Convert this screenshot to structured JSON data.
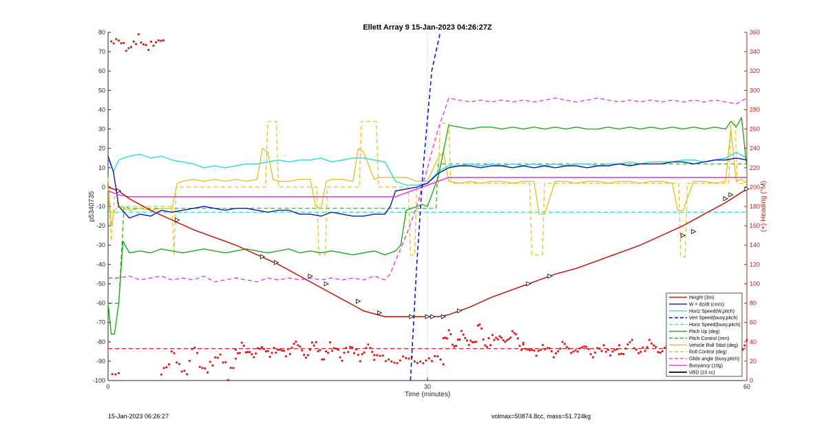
{
  "footer": {
    "left": "15-Jan-2023 06:26:27",
    "right": "volmax=50874.8cc, mass=51.724kg"
  },
  "chart_data": {
    "type": "line",
    "title": "Ellett Array 9 15-Jan-2023 04:26:27Z",
    "xlabel": "Time (minutes)",
    "ylabel": "p5340735",
    "ylabel_right": "(+) Heading (°M)",
    "xlim": [
      0,
      60
    ],
    "ylim": [
      -100,
      80
    ],
    "ylim_right": [
      0,
      360
    ],
    "xticks": [
      0,
      30,
      60
    ],
    "yticks": [
      -100,
      -90,
      -80,
      -70,
      -60,
      -50,
      -40,
      -30,
      -20,
      -10,
      0,
      10,
      20,
      30,
      40,
      50,
      60,
      70,
      80
    ],
    "yticks_right": [
      0,
      20,
      40,
      60,
      80,
      100,
      120,
      140,
      160,
      180,
      200,
      220,
      240,
      260,
      280,
      300,
      320,
      340,
      360
    ],
    "grid": {
      "x": true,
      "y": false
    },
    "legend_position": "bottom-right",
    "colors": {
      "height": "#c0201a",
      "w": "#0a1aa8",
      "horiz_speed": "#30d8e0",
      "vert_speed": "#0a1ad0",
      "pitch": "#22a822",
      "roll": "#e0c020",
      "glide": "#e040e0",
      "vbd": "#000000",
      "heading": "#d42020"
    },
    "series": [
      {
        "name": "Height (3m)",
        "key": "height",
        "style": "solid",
        "width": 1.6,
        "x": [
          0,
          0.5,
          1,
          2,
          4,
          6,
          8,
          10,
          12,
          14,
          16,
          18,
          20,
          22,
          24,
          26,
          27,
          28,
          30,
          31,
          32,
          33,
          34,
          36,
          38,
          40,
          42,
          44,
          46,
          48,
          50,
          52,
          54,
          56,
          58,
          60
        ],
        "y": [
          0,
          -1,
          -2,
          -6,
          -12,
          -17,
          -22,
          -26,
          -30,
          -35,
          -40,
          -46,
          -52,
          -58,
          -64,
          -67,
          -67,
          -67,
          -67,
          -67,
          -66,
          -64,
          -62,
          -57,
          -53,
          -49,
          -45,
          -42,
          -38,
          -34,
          -30,
          -25,
          -20,
          -14,
          -8,
          -1
        ],
        "markers": [
          [
            1,
            -2
          ],
          [
            6.5,
            -17
          ],
          [
            14.5,
            -36
          ],
          [
            15.8,
            -39
          ],
          [
            19,
            -46
          ],
          [
            20.5,
            -50
          ],
          [
            23.5,
            -59
          ],
          [
            25.5,
            -65
          ],
          [
            28.5,
            -67
          ],
          [
            30,
            -67
          ],
          [
            30.5,
            -67
          ],
          [
            31.5,
            -67
          ],
          [
            33,
            -64
          ],
          [
            39.5,
            -50
          ],
          [
            41.5,
            -46
          ],
          [
            54,
            -25
          ],
          [
            55,
            -23
          ],
          [
            58,
            -6
          ],
          [
            58.5,
            -4
          ],
          [
            60,
            -1
          ]
        ]
      },
      {
        "name": "W = dz/dt (cm/s)",
        "key": "w",
        "style": "solid",
        "width": 1.4,
        "x": [
          0,
          0.5,
          1,
          2,
          3,
          4,
          5,
          6,
          7,
          8,
          9,
          10,
          11,
          12,
          13,
          14,
          15,
          16,
          17,
          18,
          19,
          20,
          21,
          22,
          23,
          24,
          25,
          26,
          26.5,
          27,
          28,
          29,
          30,
          31,
          32,
          33,
          34,
          35,
          36,
          37,
          38,
          39,
          40,
          41,
          42,
          43,
          44,
          45,
          46,
          47,
          48,
          49,
          50,
          51,
          52,
          53,
          54,
          55,
          56,
          57,
          58,
          59,
          60
        ],
        "y": [
          16,
          8,
          -10,
          -16,
          -14,
          -15,
          -12,
          -13,
          -12,
          -11,
          -10,
          -11,
          -12,
          -11,
          -11,
          -12,
          -13,
          -12,
          -12,
          -14,
          -14,
          -15,
          -13,
          -14,
          -15,
          -15,
          -14,
          -14,
          -10,
          -2,
          -1,
          0,
          2,
          7,
          10,
          11,
          11,
          10,
          11,
          11,
          10,
          11,
          10,
          11,
          10,
          11,
          11,
          10,
          11,
          11,
          12,
          11,
          12,
          12,
          12,
          13,
          13,
          12,
          13,
          14,
          14,
          15,
          14
        ]
      },
      {
        "name": "Horiz Speed(W,pitch)",
        "key": "horiz_speed",
        "style": "solid",
        "width": 1.4,
        "x": [
          0,
          0.5,
          1,
          2,
          3,
          4,
          5,
          6,
          7,
          8,
          9,
          10,
          11,
          12,
          13,
          14,
          15,
          16,
          17,
          18,
          19,
          20,
          21,
          22,
          23,
          24,
          25,
          26,
          27,
          28,
          29,
          30,
          31,
          32,
          33,
          34,
          35,
          36,
          37,
          38,
          39,
          40,
          41,
          42,
          43,
          44,
          45,
          46,
          47,
          48,
          49,
          50,
          51,
          52,
          53,
          54,
          55,
          56,
          57,
          58,
          59,
          60
        ],
        "y": [
          15,
          8,
          14,
          16,
          17,
          15,
          16,
          14,
          13,
          12,
          10,
          11,
          10,
          11,
          12,
          12,
          13,
          14,
          13,
          14,
          14,
          15,
          13,
          14,
          15,
          15,
          14,
          13,
          3,
          1,
          1,
          2,
          8,
          11,
          11,
          12,
          11,
          12,
          11,
          12,
          11,
          12,
          11,
          12,
          11,
          12,
          12,
          11,
          12,
          12,
          13,
          12,
          13,
          13,
          13,
          14,
          14,
          13,
          14,
          15,
          18,
          15
        ]
      },
      {
        "name": "Vert Speed(buoy,pitch)",
        "key": "vert_speed",
        "style": "dashed",
        "width": 1.6,
        "x": [
          28.4,
          29,
          29.6,
          30.4,
          31.2
        ],
        "y": [
          -100,
          -40,
          10,
          60,
          80
        ]
      },
      {
        "name": "Horiz Speed(buoy,pitch)",
        "key": "horiz_speed",
        "style": "dashed",
        "width": 1.2,
        "x": [
          0,
          60
        ],
        "y": [
          -13,
          -13
        ]
      },
      {
        "name": "Pitch Up (deg)",
        "key": "pitch",
        "style": "solid",
        "width": 1.4,
        "x": [
          0,
          0.3,
          0.6,
          1,
          1.4,
          2,
          3,
          4,
          5,
          6,
          7,
          8,
          9,
          10,
          11,
          12,
          13,
          14,
          15,
          16,
          17,
          18,
          19,
          20,
          21,
          22,
          23,
          24,
          25,
          26,
          27,
          27.5,
          28,
          28.5,
          29,
          29.5,
          30,
          31,
          32,
          33,
          34,
          35,
          36,
          37,
          38,
          39,
          40,
          41,
          42,
          43,
          44,
          45,
          46,
          47,
          48,
          49,
          50,
          51,
          52,
          53,
          54,
          55,
          56,
          57,
          58,
          58.5,
          59,
          59.5,
          60
        ],
        "y": [
          -60,
          -76,
          -76,
          -60,
          -28,
          -34,
          -33,
          -34,
          -32,
          -33,
          -34,
          -33,
          -32,
          -33,
          -34,
          -33,
          -32,
          -33,
          -34,
          -33,
          -32,
          -34,
          -33,
          -34,
          -33,
          -34,
          -35,
          -34,
          -33,
          -35,
          -33,
          -30,
          -12,
          -11,
          -10,
          -9,
          -10,
          5,
          32,
          31,
          30,
          31,
          31,
          30,
          31,
          30,
          31,
          30,
          31,
          30,
          31,
          30,
          30,
          31,
          30,
          31,
          30,
          31,
          30,
          31,
          30,
          31,
          30,
          31,
          30,
          34,
          31,
          36,
          10
        ]
      },
      {
        "name": "Pitch Control (mm)",
        "key": "pitch",
        "style": "dashed",
        "width": 1.2,
        "x": [
          0,
          1,
          1.5,
          2,
          10,
          20,
          28,
          29,
          30,
          30.8,
          31,
          60
        ],
        "y": [
          -60,
          -60,
          -10,
          -11,
          -11,
          -11,
          -11,
          -11,
          -11,
          -11,
          12,
          12
        ]
      },
      {
        "name": "Vehicle Roll Stbd (deg)",
        "key": "roll",
        "style": "solid",
        "width": 1.3,
        "x": [
          0,
          0.3,
          0.6,
          1,
          2,
          3,
          4,
          5,
          6,
          6.5,
          7,
          8,
          9,
          10,
          11,
          12,
          13,
          14,
          14.5,
          15,
          15.5,
          16,
          17,
          18,
          19,
          19.5,
          20,
          20.5,
          21,
          22,
          23,
          23.5,
          24,
          25,
          25.5,
          26,
          27,
          28,
          29,
          30,
          31,
          31.5,
          32,
          33,
          34,
          35,
          36,
          37,
          38,
          39,
          40,
          40.5,
          41,
          42,
          43,
          44,
          45,
          46,
          47,
          48,
          49,
          50,
          51,
          52,
          53,
          53.5,
          54,
          55,
          56,
          57,
          58,
          58.5,
          59,
          59.5,
          60
        ],
        "y": [
          5,
          -20,
          -12,
          -10,
          -12,
          -11,
          -12,
          -11,
          -11,
          2,
          3,
          4,
          3,
          4,
          3,
          4,
          3,
          4,
          20,
          18,
          4,
          3,
          3,
          4,
          4,
          -10,
          -11,
          3,
          4,
          4,
          3,
          20,
          18,
          4,
          5,
          5,
          5,
          5,
          3,
          3,
          15,
          18,
          3,
          2,
          3,
          2,
          3,
          3,
          2,
          3,
          3,
          -14,
          -14,
          3,
          3,
          2,
          3,
          3,
          2,
          3,
          3,
          2,
          3,
          3,
          2,
          -12,
          -12,
          3,
          3,
          2,
          3,
          30,
          3,
          4,
          2
        ]
      },
      {
        "name": "Roll Control (deg)",
        "key": "roll",
        "style": "dashed",
        "width": 1.2,
        "x": [
          0,
          0.3,
          0.6,
          1,
          2,
          6,
          6.2,
          6.4,
          14.8,
          15,
          15.8,
          16,
          19.6,
          19.8,
          20.4,
          20.6,
          23.6,
          23.8,
          25.2,
          25.4,
          28.2,
          28.4,
          28.8,
          29,
          29.6,
          29.8,
          31,
          31.2,
          32,
          32.2,
          39.6,
          39.8,
          40.8,
          41,
          53.6,
          53.8,
          54.2,
          54.4,
          58.3,
          58.5,
          58.9,
          59.1,
          60
        ],
        "y": [
          0,
          -28,
          -5,
          -10,
          -10,
          -10,
          -35,
          0,
          0,
          34,
          34,
          0,
          0,
          -35,
          -35,
          0,
          0,
          34,
          34,
          0,
          0,
          -35,
          -35,
          0,
          0,
          2,
          2,
          33,
          33,
          2,
          2,
          -35,
          -35,
          2,
          2,
          -36,
          -36,
          2,
          2,
          34,
          34,
          2,
          2
        ]
      },
      {
        "name": "Glide angle (buoy,pitch)",
        "key": "glide",
        "style": "dashed",
        "width": 1.4,
        "x": [
          0,
          1,
          2,
          3,
          4,
          5,
          6,
          7,
          8,
          9,
          10,
          11,
          12,
          13,
          14,
          15,
          16,
          17,
          18,
          19,
          20,
          21,
          22,
          23,
          24,
          25,
          26,
          26.5,
          27,
          28,
          29,
          30,
          31,
          32,
          33,
          34,
          35,
          36,
          37,
          38,
          39,
          40,
          41,
          42,
          43,
          44,
          45,
          46,
          47,
          48,
          49,
          50,
          51,
          52,
          53,
          54,
          55,
          56,
          57,
          58,
          59,
          60
        ],
        "y": [
          -47,
          -47,
          -46,
          -48,
          -47,
          -46,
          -48,
          -47,
          -48,
          -46,
          -49,
          -48,
          -47,
          -48,
          -49,
          -47,
          -48,
          -47,
          -48,
          -47,
          -48,
          -47,
          -48,
          -47,
          -48,
          -46,
          -48,
          -45,
          -38,
          -25,
          -10,
          10,
          30,
          46,
          45,
          44,
          45,
          44,
          45,
          44,
          45,
          44,
          45,
          46,
          45,
          44,
          45,
          46,
          45,
          44,
          45,
          44,
          45,
          44,
          45,
          44,
          45,
          44,
          45,
          44,
          43,
          46
        ]
      },
      {
        "name": "Buoyancy (10g)",
        "key": "glide",
        "style": "solid",
        "width": 1.6,
        "x": [
          0,
          1,
          2,
          27,
          28,
          29,
          30,
          31.5,
          32,
          60
        ],
        "y": [
          -2,
          -4,
          -5,
          -5,
          -3,
          -1,
          1,
          4,
          5,
          5
        ]
      },
      {
        "name": "VBD (10 cc)",
        "key": "vbd",
        "style": "solid",
        "width": 1.8,
        "x": [
          0.2,
          0.6,
          1,
          1.5,
          28,
          30,
          31.5,
          32,
          59.5,
          60
        ],
        "y": [
          16,
          5,
          0,
          -4,
          -4,
          -4,
          6,
          6,
          6,
          4
        ]
      }
    ],
    "heading_clusters": [
      {
        "x0": 0.3,
        "x1": 5.2,
        "y0": 340,
        "y1": 358,
        "n": 22
      },
      {
        "x0": 0.4,
        "x1": 1.0,
        "y0": 0,
        "y1": 10,
        "n": 3
      },
      {
        "x0": 5.0,
        "x1": 12.0,
        "y0": 0,
        "y1": 34,
        "n": 30
      },
      {
        "x0": 12.0,
        "x1": 25.0,
        "y0": 20,
        "y1": 42,
        "n": 70
      },
      {
        "x0": 25.0,
        "x1": 31.5,
        "y0": 14,
        "y1": 28,
        "n": 25
      },
      {
        "x0": 31.5,
        "x1": 39.0,
        "y0": 30,
        "y1": 58,
        "n": 45
      },
      {
        "x0": 39.0,
        "x1": 48.0,
        "y0": 24,
        "y1": 40,
        "n": 45
      },
      {
        "x0": 48.0,
        "x1": 60.0,
        "y0": 26,
        "y1": 42,
        "n": 60
      }
    ],
    "heading_line": {
      "y": 33
    }
  }
}
